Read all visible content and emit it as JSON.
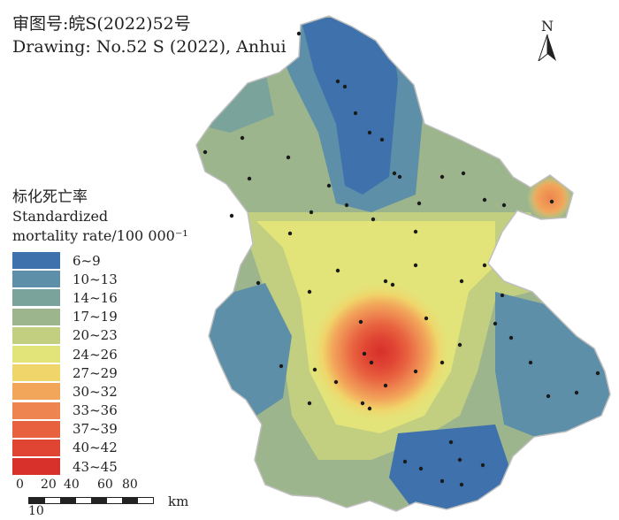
{
  "header": {
    "line1": "审图号:皖S(2022)52号",
    "line2": "Drawing: No.52 S (2022), Anhui"
  },
  "north_arrow": {
    "label": "N"
  },
  "legend": {
    "title_cn": "标化死亡率",
    "title_en": "Standardized",
    "unit": "mortality rate/100 000⁻¹",
    "items": [
      {
        "label": "6~9",
        "color": "#3f72ad"
      },
      {
        "label": "10~13",
        "color": "#5d8fa8"
      },
      {
        "label": "14~16",
        "color": "#7aa39c"
      },
      {
        "label": "17~19",
        "color": "#9cb58d"
      },
      {
        "label": "20~23",
        "color": "#c2cf80"
      },
      {
        "label": "24~26",
        "color": "#e2e47a"
      },
      {
        "label": "27~29",
        "color": "#f0d56a"
      },
      {
        "label": "30~32",
        "color": "#f2a65a"
      },
      {
        "label": "33~36",
        "color": "#ee8450"
      },
      {
        "label": "37~39",
        "color": "#e8623f"
      },
      {
        "label": "40~42",
        "color": "#e04433"
      },
      {
        "label": "43~45",
        "color": "#d8302b"
      }
    ]
  },
  "scale_bar": {
    "ticks": [
      "0",
      "20",
      "40",
      "60",
      "80"
    ],
    "minor": "10",
    "unit": "km"
  }
}
